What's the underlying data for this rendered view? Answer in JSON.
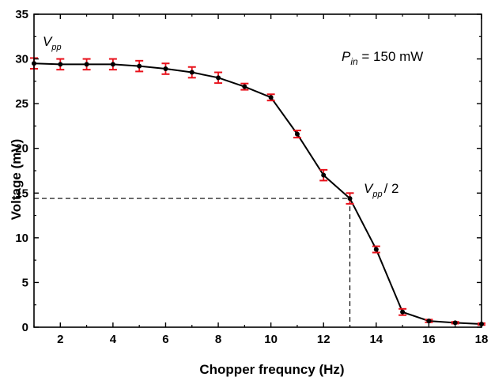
{
  "chart_data": {
    "type": "line",
    "xlabel": "Chopper frequncy (Hz)",
    "ylabel": "Voltage (mV)",
    "xlim": [
      1,
      18
    ],
    "ylim": [
      0,
      35
    ],
    "xticks": [
      2,
      4,
      6,
      8,
      10,
      12,
      14,
      16,
      18
    ],
    "yticks": [
      0,
      5,
      10,
      15,
      20,
      25,
      30,
      35
    ],
    "grid": false,
    "x": [
      1,
      2,
      3,
      4,
      5,
      6,
      7,
      8,
      9,
      10,
      11,
      12,
      13,
      14,
      15,
      16,
      17,
      18
    ],
    "y": [
      29.5,
      29.4,
      29.4,
      29.4,
      29.2,
      28.9,
      28.5,
      27.9,
      26.9,
      25.7,
      21.6,
      17.0,
      14.4,
      8.7,
      1.7,
      0.7,
      0.5,
      0.35
    ],
    "error": [
      0.6,
      0.6,
      0.6,
      0.6,
      0.6,
      0.6,
      0.6,
      0.6,
      0.35,
      0.35,
      0.4,
      0.6,
      0.6,
      0.35,
      0.35,
      0.15,
      0.1,
      0.1
    ],
    "line_color": "#000000",
    "marker_color": "#000000",
    "errorbar_color": "#e8101a",
    "reference_point": {
      "x": 13,
      "y": 14.4
    },
    "annotations": {
      "vpp_main": "V",
      "vpp_sub": "pp",
      "pin_main": "P",
      "pin_sub": "in",
      "pin_value": " = 150 mW",
      "half_main": "V",
      "half_sub": "pp",
      "half_suffix": "/ 2"
    }
  }
}
